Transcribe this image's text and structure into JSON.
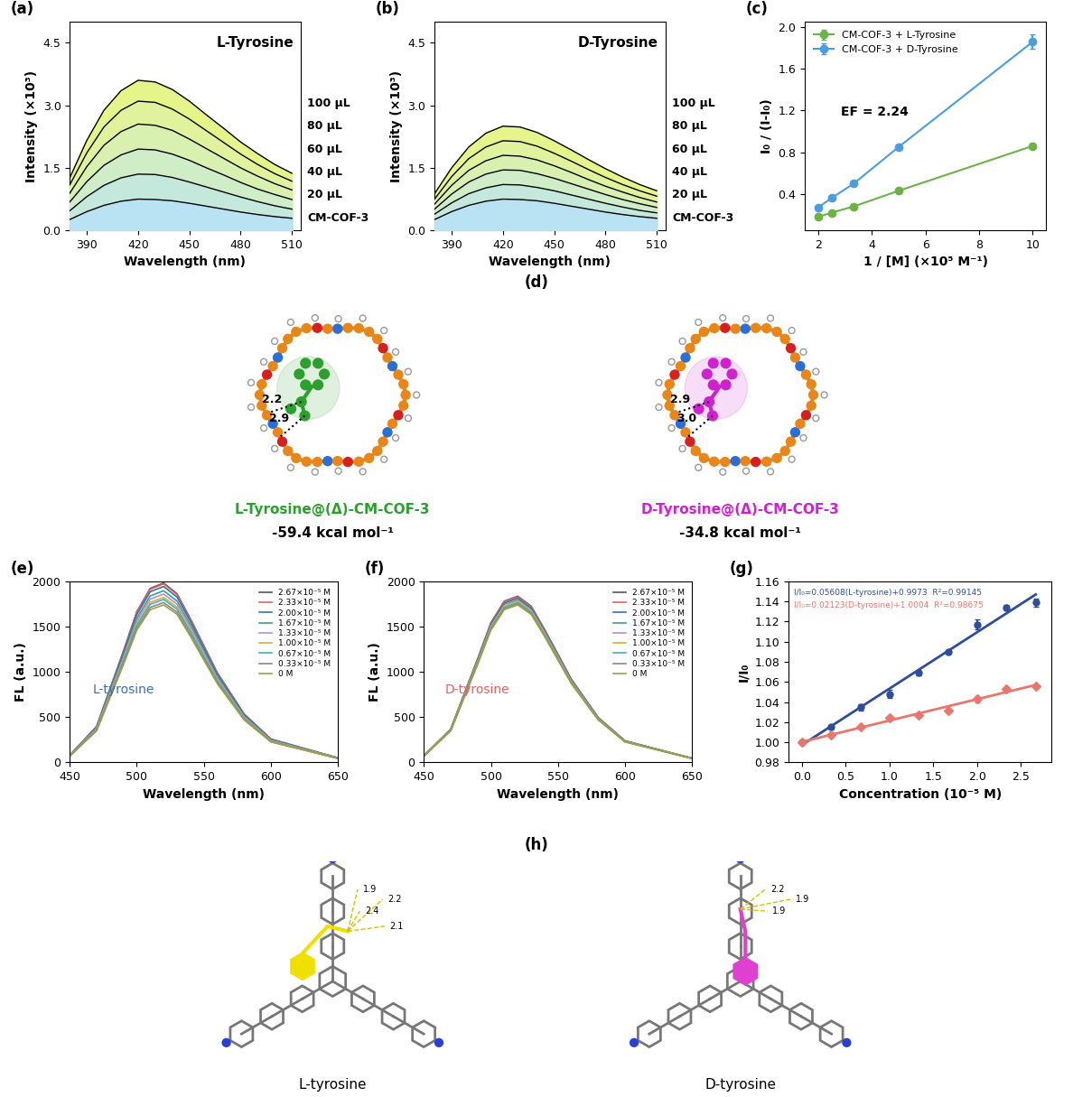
{
  "chart_data": [
    {
      "panel_label": "(a)",
      "type": "area",
      "title": "L-Tyrosine",
      "x_label": "Wavelength (nm)",
      "y_label": "Intensity (×10³)",
      "x": [
        380,
        390,
        400,
        410,
        420,
        430,
        440,
        450,
        460,
        470,
        480,
        490,
        500,
        510
      ],
      "series": [
        {
          "name": "CM-COF-3",
          "color": "#b9e2f2",
          "values": [
            0.26,
            0.45,
            0.6,
            0.7,
            0.75,
            0.74,
            0.71,
            0.65,
            0.58,
            0.51,
            0.44,
            0.38,
            0.33,
            0.29
          ]
        },
        {
          "name": "20 μL",
          "color": "#c4e8dc",
          "values": [
            0.47,
            0.81,
            1.08,
            1.26,
            1.35,
            1.34,
            1.27,
            1.16,
            1.04,
            0.92,
            0.8,
            0.69,
            0.59,
            0.51
          ]
        },
        {
          "name": "40 μL",
          "color": "#cfedc6",
          "values": [
            0.68,
            1.17,
            1.56,
            1.81,
            1.95,
            1.93,
            1.83,
            1.68,
            1.5,
            1.33,
            1.15,
            0.99,
            0.86,
            0.74
          ]
        },
        {
          "name": "60 μL",
          "color": "#d8f0b0",
          "values": [
            0.89,
            1.53,
            2.04,
            2.37,
            2.55,
            2.52,
            2.4,
            2.19,
            1.96,
            1.73,
            1.5,
            1.3,
            1.12,
            0.97
          ]
        },
        {
          "name": "80 μL",
          "color": "#e0f39c",
          "values": [
            1.09,
            1.86,
            2.48,
            2.88,
            3.1,
            3.07,
            2.91,
            2.67,
            2.39,
            2.11,
            1.83,
            1.58,
            1.36,
            1.18
          ]
        },
        {
          "name": "100 μL",
          "color": "#e6f58a",
          "values": [
            1.26,
            2.16,
            2.88,
            3.35,
            3.6,
            3.56,
            3.38,
            3.1,
            2.77,
            2.45,
            2.12,
            1.84,
            1.58,
            1.37
          ]
        }
      ],
      "xlim": [
        380,
        515
      ],
      "ylim": [
        0,
        5
      ],
      "xticks": [
        390,
        420,
        450,
        480,
        510
      ],
      "yticks": [
        0.0,
        1.5,
        3.0,
        4.5
      ]
    },
    {
      "panel_label": "(b)",
      "type": "area",
      "title": "D-Tyrosine",
      "x_label": "Wavelength (nm)",
      "y_label": "Intensity (×10³)",
      "x": [
        380,
        390,
        400,
        410,
        420,
        430,
        440,
        450,
        460,
        470,
        480,
        490,
        500,
        510
      ],
      "series": [
        {
          "name": "CM-COF-3",
          "color": "#b9e2f2",
          "values": [
            0.26,
            0.45,
            0.6,
            0.7,
            0.75,
            0.74,
            0.71,
            0.65,
            0.58,
            0.51,
            0.44,
            0.38,
            0.33,
            0.29
          ]
        },
        {
          "name": "20 μL",
          "color": "#c4e8dc",
          "values": [
            0.39,
            0.66,
            0.88,
            1.02,
            1.1,
            1.09,
            1.03,
            0.95,
            0.85,
            0.75,
            0.65,
            0.56,
            0.48,
            0.42
          ]
        },
        {
          "name": "40 μL",
          "color": "#cfedc6",
          "values": [
            0.51,
            0.87,
            1.16,
            1.35,
            1.45,
            1.44,
            1.36,
            1.25,
            1.12,
            0.99,
            0.86,
            0.74,
            0.64,
            0.55
          ]
        },
        {
          "name": "60 μL",
          "color": "#d8f0b0",
          "values": [
            0.63,
            1.08,
            1.44,
            1.67,
            1.8,
            1.78,
            1.69,
            1.55,
            1.39,
            1.22,
            1.06,
            0.92,
            0.79,
            0.68
          ]
        },
        {
          "name": "80 μL",
          "color": "#e0f39c",
          "values": [
            0.75,
            1.29,
            1.72,
            2.0,
            2.15,
            2.13,
            2.02,
            1.85,
            1.66,
            1.46,
            1.27,
            1.1,
            0.95,
            0.82
          ]
        },
        {
          "name": "100 μL",
          "color": "#e6f58a",
          "values": [
            0.88,
            1.5,
            2.0,
            2.33,
            2.5,
            2.48,
            2.35,
            2.15,
            1.93,
            1.7,
            1.48,
            1.28,
            1.1,
            0.95
          ]
        }
      ],
      "xlim": [
        380,
        515
      ],
      "ylim": [
        0,
        5
      ],
      "xticks": [
        390,
        420,
        450,
        480,
        510
      ],
      "yticks": [
        0.0,
        1.5,
        3.0,
        4.5
      ]
    },
    {
      "panel_label": "(c)",
      "type": "scatter",
      "annotation": "EF = 2.24",
      "x_label": "1 / [M] (×10⁵ M⁻¹)",
      "y_label": "I₀ / (I-I₀)",
      "x": [
        2,
        2.5,
        3.33,
        5,
        10
      ],
      "series": [
        {
          "name": "CM-COF-3 + L-Tyrosine",
          "color": "#6ab344",
          "marker": "o",
          "line_style": "solid",
          "values": [
            0.18,
            0.22,
            0.28,
            0.43,
            0.86
          ],
          "errors": [
            0.01,
            0.01,
            0.01,
            0.02,
            0.02
          ]
        },
        {
          "name": "CM-COF-3 + D-Tyrosine",
          "color": "#4a9ee0",
          "marker": "o",
          "line_style": "solid",
          "values": [
            0.27,
            0.36,
            0.5,
            0.85,
            1.86
          ],
          "errors": [
            0.01,
            0.02,
            0.02,
            0.02,
            0.07
          ]
        }
      ],
      "legend": "upper left",
      "xlim": [
        1.5,
        10.5
      ],
      "ylim": [
        0.05,
        2.05
      ],
      "xticks": [
        2,
        4,
        6,
        8,
        10
      ],
      "yticks": [
        0.4,
        0.8,
        1.2,
        1.6,
        2.0
      ]
    },
    {
      "panel_label": "(e)",
      "type": "line",
      "annotation": "L-tyrosine",
      "x_label": "Wavelength (nm)",
      "y_label": "FL (a.u.)",
      "x": [
        450,
        470,
        490,
        500,
        510,
        520,
        530,
        540,
        560,
        580,
        600,
        650
      ],
      "series": [
        {
          "name": "2.67×10⁻⁵ M",
          "color": "#555555",
          "values": [
            79,
            396,
            1229,
            1665,
            1923,
            1982,
            1863,
            1586,
            991,
            535,
            258,
            50
          ]
        },
        {
          "name": "2.33×10⁻⁵ M",
          "color": "#e06060",
          "values": [
            79,
            395,
            1223,
            1657,
            1914,
            1973,
            1855,
            1578,
            987,
            533,
            256,
            49
          ]
        },
        {
          "name": "2.00×10⁻⁵ M",
          "color": "#3a70b0",
          "values": [
            78,
            389,
            1205,
            1633,
            1886,
            1944,
            1827,
            1555,
            972,
            525,
            253,
            49
          ]
        },
        {
          "name": "1.67×10⁻⁵ M",
          "color": "#3aa08a",
          "values": [
            76,
            379,
            1176,
            1593,
            1840,
            1897,
            1783,
            1518,
            949,
            512,
            247,
            47
          ]
        },
        {
          "name": "1.33×10⁻⁵ M",
          "color": "#b090d0",
          "values": [
            74,
            372,
            1153,
            1562,
            1804,
            1860,
            1748,
            1488,
            930,
            502,
            242,
            47
          ]
        },
        {
          "name": "1.00×10⁻⁵ M",
          "color": "#d8b040",
          "values": [
            73,
            365,
            1131,
            1532,
            1769,
            1824,
            1715,
            1459,
            912,
            492,
            237,
            46
          ]
        },
        {
          "name": "0.67×10⁻⁵ M",
          "color": "#40b0c0",
          "values": [
            72,
            360,
            1117,
            1513,
            1747,
            1801,
            1693,
            1441,
            901,
            486,
            234,
            45
          ]
        },
        {
          "name": "0.33×10⁻⁵ M",
          "color": "#888888",
          "values": [
            71,
            353,
            1095,
            1483,
            1713,
            1766,
            1660,
            1413,
            883,
            477,
            230,
            44
          ]
        },
        {
          "name": "0 M",
          "color": "#a0a040",
          "values": [
            70,
            348,
            1079,
            1462,
            1688,
            1740,
            1636,
            1392,
            870,
            470,
            226,
            44
          ]
        }
      ],
      "legend": "upper right",
      "xlim": [
        450,
        650
      ],
      "ylim": [
        0,
        2000
      ],
      "xticks": [
        450,
        500,
        550,
        600,
        650
      ],
      "yticks": [
        0,
        500,
        1000,
        1500,
        2000
      ]
    },
    {
      "panel_label": "(f)",
      "type": "line",
      "annotation": "D-tyrosine",
      "x_label": "Wavelength (nm)",
      "y_label": "FL (a.u.)",
      "x": [
        450,
        470,
        490,
        500,
        510,
        520,
        530,
        540,
        560,
        580,
        600,
        650
      ],
      "series": [
        {
          "name": "2.67×10⁻⁵ M",
          "color": "#555555",
          "values": [
            73,
            367,
            1139,
            1543,
            1782,
            1837,
            1727,
            1470,
            919,
            496,
            239,
            46
          ]
        },
        {
          "name": "2.33×10⁻⁵ M",
          "color": "#e06060",
          "values": [
            73,
            366,
            1136,
            1539,
            1777,
            1832,
            1722,
            1466,
            916,
            495,
            238,
            46
          ]
        },
        {
          "name": "2.00×10⁻⁵ M",
          "color": "#3a70b0",
          "values": [
            73,
            363,
            1125,
            1525,
            1761,
            1815,
            1706,
            1452,
            908,
            490,
            236,
            45
          ]
        },
        {
          "name": "1.67×10⁻⁵ M",
          "color": "#3aa08a",
          "values": [
            72,
            359,
            1114,
            1509,
            1742,
            1796,
            1688,
            1437,
            898,
            485,
            233,
            45
          ]
        },
        {
          "name": "1.33×10⁻⁵ M",
          "color": "#b090d0",
          "values": [
            71,
            357,
            1108,
            1501,
            1733,
            1787,
            1680,
            1430,
            894,
            482,
            232,
            45
          ]
        },
        {
          "name": "1.00×10⁻⁵ M",
          "color": "#d8b040",
          "values": [
            71,
            356,
            1105,
            1497,
            1729,
            1782,
            1675,
            1426,
            891,
            481,
            232,
            45
          ]
        },
        {
          "name": "0.67×10⁻⁵ M",
          "color": "#40b0c0",
          "values": [
            71,
            353,
            1095,
            1483,
            1713,
            1766,
            1660,
            1413,
            883,
            477,
            230,
            44
          ]
        },
        {
          "name": "0.33×10⁻⁵ M",
          "color": "#888888",
          "values": [
            70,
            350,
            1086,
            1472,
            1699,
            1752,
            1647,
            1402,
            876,
            473,
            228,
            44
          ]
        },
        {
          "name": "0 M",
          "color": "#a0a040",
          "values": [
            70,
            348,
            1079,
            1462,
            1688,
            1740,
            1636,
            1392,
            870,
            470,
            226,
            44
          ]
        }
      ],
      "legend": "upper right",
      "xlim": [
        450,
        650
      ],
      "ylim": [
        0,
        2000
      ],
      "xticks": [
        450,
        500,
        550,
        600,
        650
      ],
      "yticks": [
        0,
        500,
        1000,
        1500,
        2000
      ]
    },
    {
      "panel_label": "(g)",
      "type": "scatter",
      "x_label": "Concentration (10⁻⁵ M)",
      "y_label": "I/I₀",
      "x": [
        0,
        0.33,
        0.67,
        1.0,
        1.33,
        1.67,
        2.0,
        2.33,
        2.67
      ],
      "series": [
        {
          "color": "#2e4d9a",
          "marker": "o",
          "values": [
            1.0,
            1.015,
            1.035,
            1.048,
            1.069,
            1.09,
            1.117,
            1.134,
            1.139
          ],
          "errors": [
            0.001,
            0.002,
            0.003,
            0.004,
            0.002,
            0.002,
            0.005,
            0.003,
            0.004
          ],
          "fit": {
            "slope": 0.05608,
            "intercept": 0.9973
          },
          "equation": "I/I₀=0.05608(L-tyrosine)+0.9973  R²=0.99145"
        },
        {
          "color": "#e8776e",
          "marker": "D",
          "values": [
            1.0,
            1.007,
            1.015,
            1.024,
            1.027,
            1.032,
            1.043,
            1.053,
            1.056
          ],
          "errors": [
            0.001,
            0.001,
            0.001,
            0.002,
            0.002,
            0.001,
            0.003,
            0.001,
            0.001
          ],
          "fit": {
            "slope": 0.02123,
            "intercept": 1.0004
          },
          "equation": "I/I₀=0.02123(D-tyrosine)+1.0004  R²=0.98675"
        }
      ],
      "xlim": [
        -0.15,
        2.85
      ],
      "ylim": [
        0.98,
        1.16
      ],
      "xticks": [
        0.0,
        0.5,
        1.0,
        1.5,
        2.0,
        2.5
      ],
      "yticks": [
        0.98,
        {
          "value": 1.0,
          "label": "1.00"
        },
        1.02,
        1.04,
        1.06,
        1.08,
        {
          "value": 1.1,
          "label": "1.10"
        },
        1.12,
        1.14,
        1.16
      ]
    }
  ],
  "diagrams": [
    {
      "panel_label": "(d)",
      "structures": [
        {
          "name": "L-Tyrosine@(Δ)-CM-COF-3",
          "energy": "-59.4 kcal mol⁻¹",
          "distances": [
            2.2,
            2.9
          ],
          "color": "#2ca02c"
        },
        {
          "name": "D-Tyrosine@(Δ)-CM-COF-3",
          "energy": "-34.8 kcal mol⁻¹",
          "distances": [
            2.9,
            3.0
          ],
          "color": "#d020d0"
        }
      ]
    },
    {
      "panel_label": "(h)",
      "structures": [
        {
          "name": "L-tyrosine",
          "distances": [
            1.9,
            2.4,
            2.2,
            2.1
          ],
          "color": "#f0e000"
        },
        {
          "name": "D-tyrosine",
          "distances": [
            2.2,
            1.9,
            1.9
          ],
          "color": "#e040d0"
        }
      ]
    }
  ]
}
